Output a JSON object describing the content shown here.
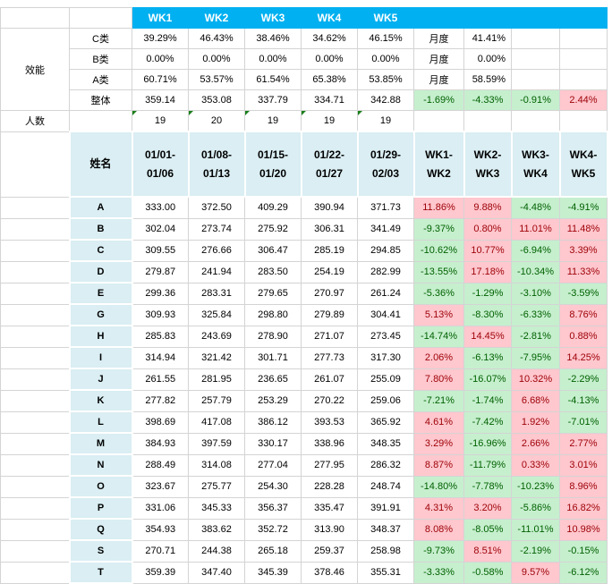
{
  "weeks": [
    "WK1",
    "WK2",
    "WK3",
    "WK4",
    "WK5"
  ],
  "efficiency": {
    "label": "效能",
    "monthly_label": "月度",
    "rows": [
      {
        "label": "C类",
        "values": [
          "39.29%",
          "46.43%",
          "38.46%",
          "34.62%",
          "46.15%"
        ],
        "monthly": "41.41%"
      },
      {
        "label": "B类",
        "values": [
          "0.00%",
          "0.00%",
          "0.00%",
          "0.00%",
          "0.00%"
        ],
        "monthly": "0.00%"
      },
      {
        "label": "A类",
        "values": [
          "60.71%",
          "53.57%",
          "61.54%",
          "65.38%",
          "53.85%"
        ],
        "monthly": "58.59%"
      }
    ],
    "overall": {
      "label": "整体",
      "values": [
        "359.14",
        "353.08",
        "337.79",
        "334.71",
        "342.88"
      ],
      "changes": [
        "-1.69%",
        "-4.33%",
        "-0.91%",
        "2.44%"
      ]
    }
  },
  "headcount": {
    "label": "人数",
    "values": [
      "19",
      "20",
      "19",
      "19",
      "19"
    ]
  },
  "columns": {
    "name": "姓名",
    "dates": [
      "01/01-01/06",
      "01/08-01/13",
      "01/15-01/20",
      "01/22-01/27",
      "01/29-02/03"
    ],
    "changes": [
      "WK1-WK2",
      "WK2-WK3",
      "WK3-WK4",
      "WK4-WK5"
    ]
  },
  "rows": [
    {
      "name": "A",
      "values": [
        "333.00",
        "372.50",
        "409.29",
        "390.94",
        "371.73"
      ],
      "changes": [
        "11.86%",
        "9.88%",
        "-4.48%",
        "-4.91%"
      ]
    },
    {
      "name": "B",
      "values": [
        "302.04",
        "273.74",
        "275.92",
        "306.31",
        "341.49"
      ],
      "changes": [
        "-9.37%",
        "0.80%",
        "11.01%",
        "11.48%"
      ]
    },
    {
      "name": "C",
      "values": [
        "309.55",
        "276.66",
        "306.47",
        "285.19",
        "294.85"
      ],
      "changes": [
        "-10.62%",
        "10.77%",
        "-6.94%",
        "3.39%"
      ]
    },
    {
      "name": "D",
      "values": [
        "279.87",
        "241.94",
        "283.50",
        "254.19",
        "282.99"
      ],
      "changes": [
        "-13.55%",
        "17.18%",
        "-10.34%",
        "11.33%"
      ]
    },
    {
      "name": "E",
      "values": [
        "299.36",
        "283.31",
        "279.65",
        "270.97",
        "261.24"
      ],
      "changes": [
        "-5.36%",
        "-1.29%",
        "-3.10%",
        "-3.59%"
      ]
    },
    {
      "name": "G",
      "values": [
        "309.93",
        "325.84",
        "298.80",
        "279.89",
        "304.41"
      ],
      "changes": [
        "5.13%",
        "-8.30%",
        "-6.33%",
        "8.76%"
      ]
    },
    {
      "name": "H",
      "values": [
        "285.83",
        "243.69",
        "278.90",
        "271.07",
        "273.45"
      ],
      "changes": [
        "-14.74%",
        "14.45%",
        "-2.81%",
        "0.88%"
      ]
    },
    {
      "name": "I",
      "values": [
        "314.94",
        "321.42",
        "301.71",
        "277.73",
        "317.30"
      ],
      "changes": [
        "2.06%",
        "-6.13%",
        "-7.95%",
        "14.25%"
      ]
    },
    {
      "name": "J",
      "values": [
        "261.55",
        "281.95",
        "236.65",
        "261.07",
        "255.09"
      ],
      "changes": [
        "7.80%",
        "-16.07%",
        "10.32%",
        "-2.29%"
      ]
    },
    {
      "name": "K",
      "values": [
        "277.82",
        "257.79",
        "253.29",
        "270.22",
        "259.06"
      ],
      "changes": [
        "-7.21%",
        "-1.74%",
        "6.68%",
        "-4.13%"
      ]
    },
    {
      "name": "L",
      "values": [
        "398.69",
        "417.08",
        "386.12",
        "393.53",
        "365.92"
      ],
      "changes": [
        "4.61%",
        "-7.42%",
        "1.92%",
        "-7.01%"
      ]
    },
    {
      "name": "M",
      "values": [
        "384.93",
        "397.59",
        "330.17",
        "338.96",
        "348.35"
      ],
      "changes": [
        "3.29%",
        "-16.96%",
        "2.66%",
        "2.77%"
      ]
    },
    {
      "name": "N",
      "values": [
        "288.49",
        "314.08",
        "277.04",
        "277.95",
        "286.32"
      ],
      "changes": [
        "8.87%",
        "-11.79%",
        "0.33%",
        "3.01%"
      ]
    },
    {
      "name": "O",
      "values": [
        "323.67",
        "275.77",
        "254.30",
        "228.28",
        "248.74"
      ],
      "changes": [
        "-14.80%",
        "-7.78%",
        "-10.23%",
        "8.96%"
      ]
    },
    {
      "name": "P",
      "values": [
        "331.06",
        "345.33",
        "356.37",
        "335.47",
        "391.91"
      ],
      "changes": [
        "4.31%",
        "3.20%",
        "-5.86%",
        "16.82%"
      ]
    },
    {
      "name": "Q",
      "values": [
        "354.93",
        "383.62",
        "352.72",
        "313.90",
        "348.37"
      ],
      "changes": [
        "8.08%",
        "-8.05%",
        "-11.01%",
        "10.98%"
      ]
    },
    {
      "name": "S",
      "values": [
        "270.71",
        "244.38",
        "265.18",
        "259.37",
        "258.98"
      ],
      "changes": [
        "-9.73%",
        "8.51%",
        "-2.19%",
        "-0.15%"
      ]
    },
    {
      "name": "T",
      "values": [
        "359.39",
        "347.40",
        "345.39",
        "378.46",
        "355.31"
      ],
      "changes": [
        "-3.33%",
        "-0.58%",
        "9.57%",
        "-6.12%"
      ]
    }
  ],
  "colors": {
    "header": "#00b0f0",
    "name_bg": "#daeef3",
    "pos_bg": "#ffc7ce",
    "pos_text": "#9c0006",
    "neg_bg": "#c6efce",
    "neg_text": "#006100"
  }
}
